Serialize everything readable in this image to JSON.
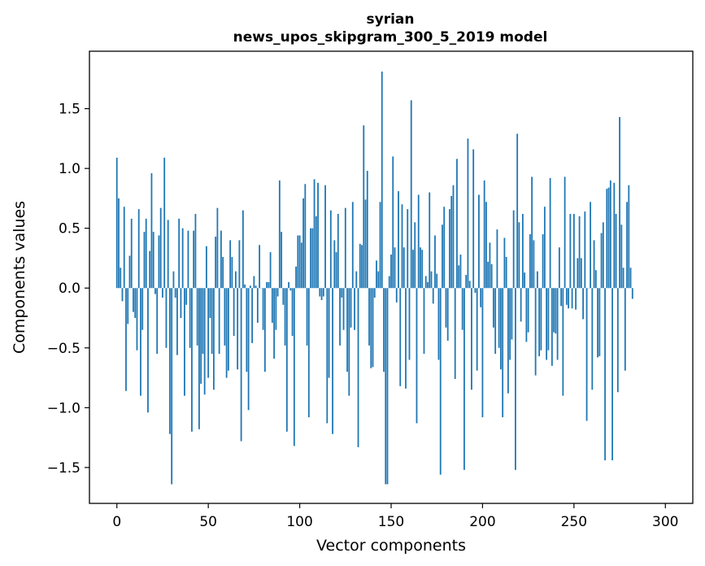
{
  "chart_data": {
    "type": "bar",
    "title_line1": "syrian",
    "title_line2": "news_upos_skipgram_300_5_2019 model",
    "xlabel": "Vector components",
    "ylabel": "Components values",
    "xlim": [
      -15,
      315
    ],
    "ylim": [
      -1.8,
      1.98
    ],
    "xticks": [
      0,
      50,
      100,
      150,
      200,
      250,
      300
    ],
    "xtick_labels": [
      "0",
      "50",
      "100",
      "150",
      "200",
      "250",
      "300"
    ],
    "yticks": [
      -1.5,
      -1.0,
      -0.5,
      0.0,
      0.5,
      1.0,
      1.5
    ],
    "ytick_labels": [
      "−1.5",
      "−1.0",
      "−0.5",
      "0.0",
      "0.5",
      "1.0",
      "1.5"
    ],
    "bar_color": "#1f77b4",
    "values": [
      1.09,
      0.75,
      0.17,
      -0.11,
      0.68,
      -0.86,
      -0.3,
      0.27,
      0.58,
      -0.2,
      -0.25,
      -0.52,
      0.66,
      -0.9,
      -0.35,
      0.47,
      0.58,
      -1.04,
      0.31,
      0.96,
      0.47,
      -0.05,
      -0.55,
      0.44,
      0.67,
      -0.08,
      1.09,
      -0.5,
      0.57,
      -1.22,
      -1.64,
      0.14,
      -0.08,
      -0.56,
      0.58,
      -0.25,
      0.5,
      -0.9,
      -0.14,
      0.48,
      -0.5,
      -1.2,
      0.48,
      0.62,
      -0.48,
      -1.18,
      -0.8,
      -0.55,
      -0.89,
      0.35,
      -0.75,
      -0.25,
      -0.55,
      -0.85,
      0.43,
      0.67,
      -0.55,
      0.48,
      0.26,
      -0.48,
      -0.75,
      -0.69,
      0.4,
      0.26,
      -0.4,
      0.14,
      -0.68,
      0.4,
      -1.28,
      0.65,
      0.03,
      -0.7,
      -1.02,
      0.02,
      -0.46,
      0.1,
      0.02,
      -0.29,
      0.36,
      0.0,
      -0.35,
      -0.7,
      0.05,
      0.05,
      0.3,
      -0.29,
      -0.59,
      -0.35,
      -0.07,
      0.9,
      0.47,
      -0.14,
      -0.48,
      -1.2,
      0.05,
      -0.02,
      -0.4,
      -1.32,
      0.18,
      0.44,
      0.44,
      0.38,
      0.75,
      0.87,
      -0.48,
      -1.08,
      0.5,
      0.5,
      0.91,
      0.6,
      0.88,
      -0.07,
      -0.1,
      -0.07,
      0.86,
      -1.13,
      -0.75,
      0.65,
      -1.22,
      0.4,
      0.3,
      0.62,
      -0.48,
      -0.08,
      -0.35,
      0.67,
      -0.7,
      -0.9,
      -0.33,
      0.72,
      -0.35,
      0.14,
      -1.33,
      0.37,
      0.36,
      1.36,
      0.74,
      0.98,
      -0.48,
      -0.67,
      -0.66,
      -0.08,
      0.23,
      0.14,
      0.72,
      1.81,
      -0.7,
      -1.64,
      -1.64,
      0.1,
      0.28,
      1.1,
      0.34,
      -0.12,
      0.81,
      -0.82,
      0.7,
      0.34,
      -0.84,
      0.66,
      -0.6,
      1.57,
      0.32,
      0.55,
      -1.13,
      0.78,
      0.34,
      0.32,
      -0.55,
      0.1,
      0.05,
      0.8,
      0.14,
      -0.13,
      0.44,
      0.12,
      -0.6,
      -1.56,
      0.53,
      0.68,
      -0.33,
      -0.44,
      0.66,
      0.77,
      0.86,
      -0.76,
      1.08,
      0.19,
      0.28,
      -0.35,
      -1.52,
      0.11,
      1.25,
      0.06,
      -0.85,
      1.16,
      -0.04,
      -0.69,
      0.78,
      -0.16,
      -1.08,
      0.9,
      0.72,
      0.22,
      0.38,
      0.2,
      -0.33,
      -0.55,
      0.49,
      -0.5,
      -0.68,
      -1.08,
      0.42,
      0.26,
      -0.88,
      -0.6,
      -0.43,
      0.65,
      -1.52,
      1.29,
      0.55,
      -0.28,
      0.62,
      0.13,
      -0.45,
      -0.37,
      0.45,
      0.93,
      0.4,
      -0.73,
      0.14,
      -0.57,
      -0.52,
      0.45,
      0.68,
      -0.6,
      -0.52,
      0.92,
      -0.65,
      -0.37,
      -0.38,
      -0.6,
      0.34,
      -0.15,
      -0.9,
      0.93,
      -0.14,
      -0.17,
      0.62,
      -0.17,
      0.62,
      -0.18,
      0.25,
      0.6,
      0.25,
      -0.26,
      0.64,
      -1.11,
      0.0,
      0.72,
      -0.85,
      0.4,
      0.15,
      -0.58,
      -0.57,
      0.46,
      0.55,
      -1.44,
      0.83,
      0.84,
      0.9,
      -1.44,
      0.88,
      0.62,
      -0.87,
      1.43,
      0.53,
      0.17,
      -0.69,
      0.72,
      0.86,
      0.17,
      -0.09
    ]
  }
}
